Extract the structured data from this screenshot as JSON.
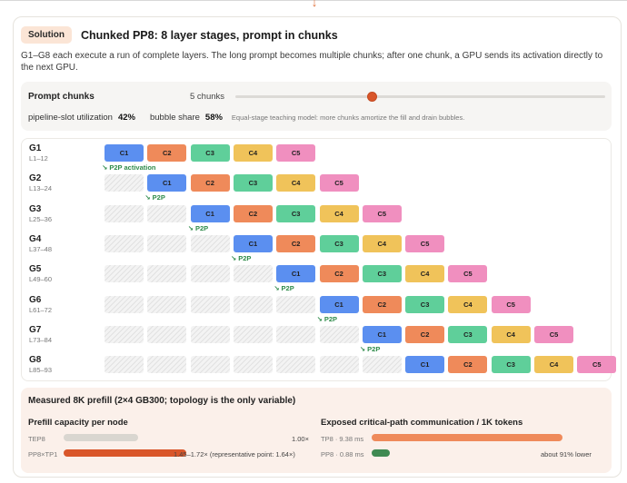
{
  "header": {
    "badge": "Solution",
    "title": "Chunked PP8: 8 layer stages, prompt in chunks",
    "description": "G1–G8 each execute a run of complete layers. The long prompt becomes multiple chunks; after one chunk, a GPU sends its activation directly to the next GPU."
  },
  "controls": {
    "label": "Prompt chunks",
    "value_text": "5 chunks",
    "slider_fraction": 0.37,
    "utilization_label": "pipeline-slot utilization",
    "utilization_value": "42%",
    "bubble_label": "bubble share",
    "bubble_value": "58%",
    "note": "Equal-stage teaching model: more chunks amortize the fill and drain bubbles."
  },
  "chunk_colors": [
    "#5b8ff0",
    "#ef8a5a",
    "#5fcf9a",
    "#f0c35a",
    "#f08fbf"
  ],
  "chunk_labels": [
    "C1",
    "C2",
    "C3",
    "C4",
    "C5"
  ],
  "first_p2p_label": "↘ P2P activation",
  "p2p_label": "↘ P2P",
  "stages": [
    {
      "name": "G1",
      "layers": "L1–12"
    },
    {
      "name": "G2",
      "layers": "L13–24"
    },
    {
      "name": "G3",
      "layers": "L25–36"
    },
    {
      "name": "G4",
      "layers": "L37–48"
    },
    {
      "name": "G5",
      "layers": "L49–60"
    },
    {
      "name": "G6",
      "layers": "L61–72"
    },
    {
      "name": "G7",
      "layers": "L73–84"
    },
    {
      "name": "G8",
      "layers": "L85–93"
    }
  ],
  "measured": {
    "title": "Measured 8K prefill (2×4 GB300; topology is the only variable)",
    "capacity": {
      "title": "Prefill capacity per node",
      "rows": [
        {
          "label": "TEP8",
          "fraction": 0.61,
          "value": "1.00×",
          "color": "#d9d6d0"
        },
        {
          "label": "PP8×TP1",
          "fraction": 1.0,
          "value": "1.45–1.72× (representative point: 1.64×)",
          "color": "#d9562a"
        }
      ]
    },
    "comm": {
      "title": "Exposed critical-path communication / 1K tokens",
      "rows": [
        {
          "label": "TP8 · 9.38 ms",
          "fraction": 1.0,
          "value": "",
          "color": "#ef8a5a"
        },
        {
          "label": "PP8 · 0.88 ms",
          "fraction": 0.094,
          "value": "about 91% lower",
          "color": "#3f8a52"
        }
      ]
    }
  }
}
